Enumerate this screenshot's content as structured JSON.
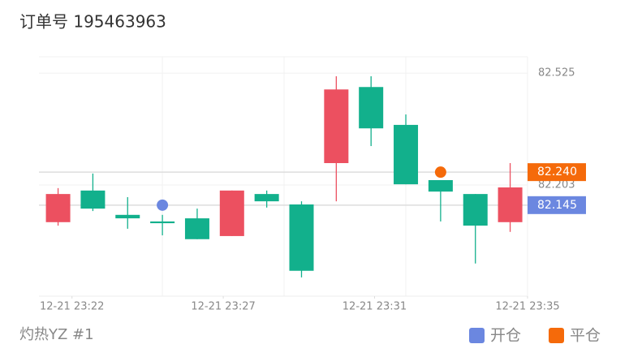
{
  "chart_data": {
    "type": "candlestick",
    "title": "订单号 195463963",
    "caption": "灼热YZ #1",
    "categories": [
      null,
      null,
      null,
      null,
      null,
      null,
      null,
      null,
      null,
      null,
      null,
      null,
      null,
      null
    ],
    "up_color": "#ec5060",
    "down_color": "#12b08c",
    "open": [
      82.096,
      82.187,
      82.117,
      82.098,
      82.107,
      82.056,
      82.177,
      82.147,
      82.266,
      82.485,
      82.376,
      82.217,
      82.177,
      82.096
    ],
    "high": [
      82.194,
      82.236,
      82.168,
      82.117,
      82.135,
      82.187,
      82.187,
      82.156,
      82.516,
      82.516,
      82.406,
      82.217,
      82.177,
      82.266
    ],
    "low": [
      82.086,
      82.128,
      82.077,
      82.058,
      82.047,
      82.056,
      82.138,
      81.937,
      82.156,
      82.315,
      82.205,
      82.098,
      81.977,
      82.068
    ],
    "close": [
      82.177,
      82.135,
      82.107,
      82.093,
      82.047,
      82.187,
      82.156,
      81.956,
      82.478,
      82.366,
      82.205,
      82.184,
      82.086,
      82.196
    ],
    "ylim": [
      81.883,
      82.572
    ],
    "yticks": [
      82.203,
      82.525
    ],
    "xlim": [
      -0.55,
      13.5
    ],
    "xticks": [
      {
        "value": 0.4,
        "label": "12-21 23:22"
      },
      {
        "value": 4.75,
        "label": "12-21 23:27"
      },
      {
        "value": 9.1,
        "label": "12-21 23:31"
      },
      {
        "value": 13.5,
        "label": "12-21 23:35"
      }
    ],
    "markers": [
      {
        "name": "开仓",
        "color": "#6b87e0",
        "index": 3,
        "value": 82.145
      },
      {
        "name": "平仓",
        "color": "#f56a0a",
        "index": 11,
        "value": 82.24
      }
    ],
    "price_lines": [
      {
        "value": 82.24,
        "label": "82.240",
        "color": "#f56a0a"
      },
      {
        "value": 82.145,
        "label": "82.145",
        "color": "#6b87e0"
      }
    ]
  }
}
